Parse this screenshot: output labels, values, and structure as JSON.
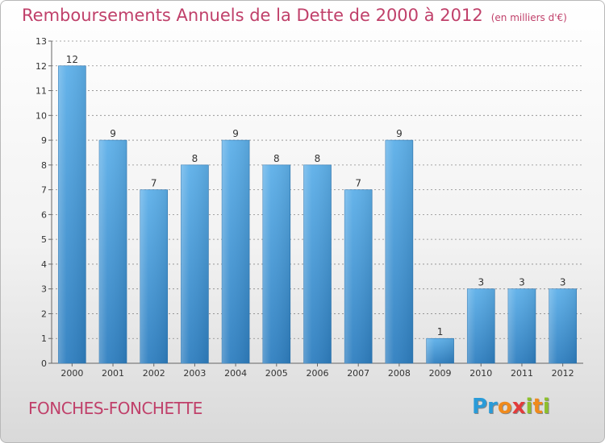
{
  "header": {
    "title": "Remboursements Annuels de la Dette de 2000 à 2012",
    "subtitle": "(en milliers d'€)"
  },
  "footer": {
    "location": "FONCHES-FONCHETTE",
    "logo_text": "Proxiti"
  },
  "colors": {
    "bar_top": "#5eb0e9",
    "bar_bottom": "#2f7fc0",
    "title": "#c0406a",
    "grid": "#8a8a8a"
  },
  "chart_data": {
    "type": "bar",
    "categories": [
      "2000",
      "2001",
      "2002",
      "2003",
      "2004",
      "2005",
      "2006",
      "2007",
      "2008",
      "2009",
      "2010",
      "2011",
      "2012"
    ],
    "values": [
      12,
      9,
      7,
      8,
      9,
      8,
      8,
      7,
      9,
      1,
      3,
      3,
      3
    ],
    "ylim": [
      0,
      13
    ],
    "yticks": [
      0,
      1,
      2,
      3,
      4,
      5,
      6,
      7,
      8,
      9,
      10,
      11,
      12,
      13
    ],
    "grid": true,
    "data_labels": true
  }
}
